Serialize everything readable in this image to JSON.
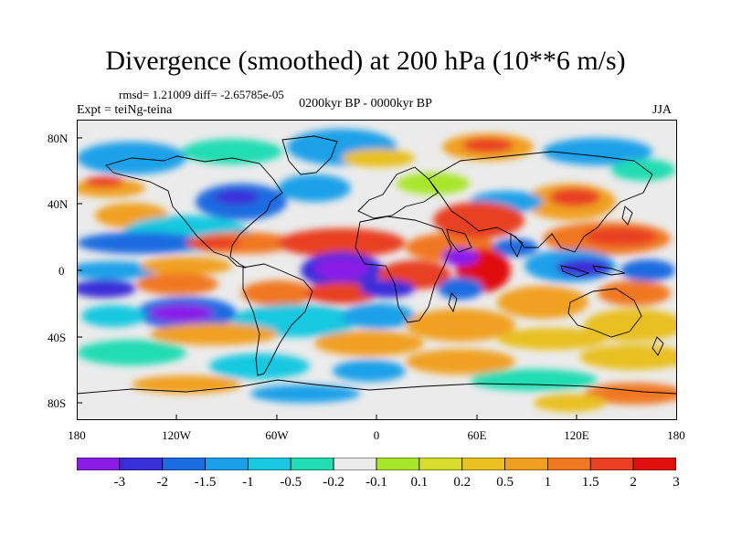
{
  "header": {
    "title": "Divergence (smoothed) at 200 hPa (10**6 m/s)",
    "stats": "rmsd= 1.21009 diff= -2.65785e-05",
    "experiment": "Expt = teiNg-teina",
    "period": "0200kyr BP - 0000kyr BP",
    "season": "JJA"
  },
  "map": {
    "lat_labels": [
      "80N",
      "40N",
      "0",
      "40S",
      "80S"
    ],
    "lon_labels": [
      "180",
      "120W",
      "60W",
      "0",
      "60E",
      "120E",
      "180"
    ],
    "background": "#ebebeb"
  },
  "colorbar": {
    "colors": [
      "#8a1ce8",
      "#3a2ed8",
      "#1a6ce0",
      "#1aa0e8",
      "#18c8e0",
      "#22dcb2",
      "#ebebeb",
      "#a8e62a",
      "#d8dc2a",
      "#e8c020",
      "#f0a020",
      "#f07820",
      "#e84020",
      "#e01010"
    ],
    "labels": [
      "-3",
      "-2",
      "-1.5",
      "-1",
      "-0.5",
      "-0.2",
      "-0.1",
      "0.1",
      "0.2",
      "0.5",
      "1",
      "1.5",
      "2",
      "3"
    ]
  }
}
